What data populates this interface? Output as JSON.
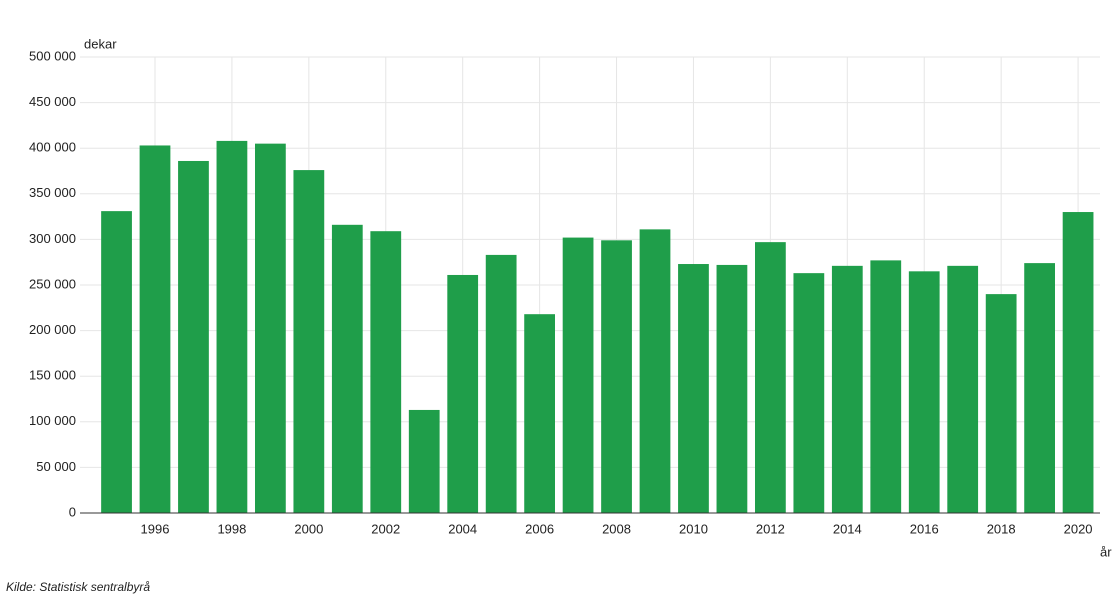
{
  "chart_data": {
    "type": "bar",
    "y_unit": "dekar",
    "x_unit": "år",
    "source": "Kilde:  Statistisk sentralbyrå",
    "x": [
      1995,
      1996,
      1997,
      1998,
      1999,
      2000,
      2001,
      2002,
      2003,
      2004,
      2005,
      2006,
      2007,
      2008,
      2009,
      2010,
      2011,
      2012,
      2013,
      2014,
      2015,
      2016,
      2017,
      2018,
      2019,
      2020
    ],
    "values": [
      331000,
      403000,
      386000,
      408000,
      405000,
      376000,
      316000,
      309000,
      113000,
      261000,
      283000,
      218000,
      302000,
      299000,
      311000,
      273000,
      272000,
      297000,
      263000,
      271000,
      277000,
      265000,
      271000,
      240000,
      274000,
      330000
    ],
    "color": "#1f9e4a",
    "xlim": [
      1994.05,
      2020.57
    ],
    "xticks": [
      1996,
      1998,
      2000,
      2002,
      2004,
      2006,
      2008,
      2010,
      2012,
      2014,
      2016,
      2018,
      2020
    ],
    "ylim": [
      0,
      500000
    ],
    "yticks": [
      0,
      {
        "value": 50000,
        "label": "50 000"
      },
      {
        "value": 100000,
        "label": "100 000"
      },
      {
        "value": 150000,
        "label": "150 000"
      },
      {
        "value": 200000,
        "label": "200 000"
      },
      {
        "value": 250000,
        "label": "250 000"
      },
      {
        "value": 300000,
        "label": "300 000"
      },
      {
        "value": 350000,
        "label": "350 000"
      },
      {
        "value": 400000,
        "label": "400 000"
      },
      {
        "value": 450000,
        "label": "450 000"
      },
      {
        "value": 500000,
        "label": "500 000"
      }
    ],
    "grid": true
  }
}
